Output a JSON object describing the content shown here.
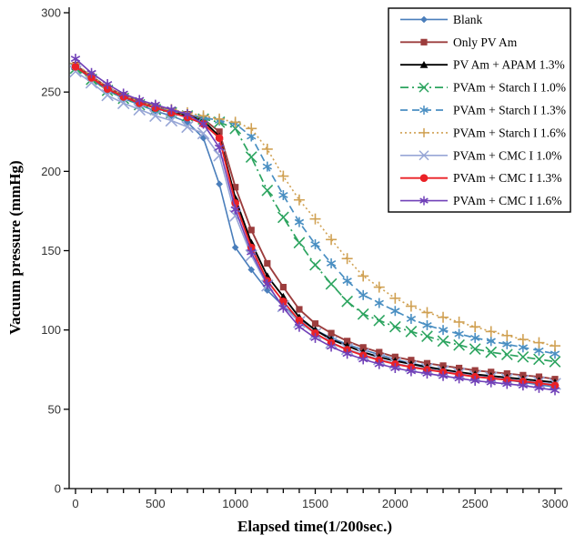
{
  "chart_data": {
    "type": "line",
    "title": "",
    "xlabel": "Elapsed time(1/200sec.)",
    "ylabel": "Vacuum pressure (mmHg)",
    "xlim": [
      0,
      3000
    ],
    "ylim": [
      0,
      300
    ],
    "x_major_ticks": [
      0,
      500,
      1000,
      1500,
      2000,
      2500,
      3000
    ],
    "x_minor_step": 100,
    "y_ticks": [
      0,
      50,
      100,
      150,
      200,
      250,
      300
    ],
    "grid": false,
    "legend_position": "top-right",
    "axis_color": "#000000",
    "tick_label_color": "#333333",
    "x_step": 100,
    "series": [
      {
        "name": "Blank",
        "color": "#4a7ebb",
        "marker": "diamond",
        "marker_size": 3.8,
        "dash": "",
        "width": 1.6,
        "values": [
          266,
          258,
          251,
          246,
          242,
          238,
          235,
          231,
          221,
          192,
          152,
          138,
          125,
          115,
          107,
          100,
          95,
          91,
          87.5,
          84.5,
          81.5,
          79,
          77,
          75,
          73,
          71.5,
          70,
          68.5,
          67,
          65.5,
          64
        ]
      },
      {
        "name": "Only PV Am",
        "color": "#9c3d3d",
        "marker": "square",
        "marker_size": 3.6,
        "dash": "",
        "width": 1.9,
        "values": [
          267,
          260,
          253,
          248,
          244,
          241,
          238,
          236,
          233,
          225,
          190,
          163,
          142,
          127,
          113,
          104,
          98,
          93,
          89,
          86,
          83,
          81,
          79,
          77.5,
          76,
          74.5,
          73.5,
          72.5,
          71.5,
          70.5,
          69
        ]
      },
      {
        "name": "PV Am + APAM 1.3%",
        "color": "#000000",
        "marker": "triangle",
        "marker_size": 4.2,
        "dash": "",
        "width": 1.9,
        "values": [
          266,
          259,
          252,
          247,
          243,
          240,
          237,
          235,
          232,
          222,
          183,
          155,
          134,
          121,
          108,
          100,
          94,
          90,
          86,
          83,
          80.5,
          78.5,
          76.5,
          75,
          73.5,
          72,
          71,
          70,
          69,
          68,
          67
        ]
      },
      {
        "name": "PVAm + Starch I 1.0%",
        "color": "#2ca45f",
        "marker": "x",
        "marker_size": 5.8,
        "dash": "9 4 2 4",
        "width": 1.7,
        "values": [
          265,
          258,
          251,
          246,
          242,
          239,
          237,
          235,
          233,
          231,
          227,
          209,
          188,
          171,
          155,
          141,
          129,
          118,
          110,
          106,
          102,
          99,
          96,
          93,
          90.5,
          88,
          86,
          84.5,
          83,
          81.5,
          80
        ]
      },
      {
        "name": "PVAm + Starch I 1.3%",
        "color": "#4a8fc2",
        "marker": "asterisk",
        "marker_size": 5.5,
        "dash": "8 5",
        "width": 1.7,
        "values": [
          266,
          259,
          252,
          247,
          243,
          240,
          238,
          236,
          234,
          232,
          230,
          222,
          203,
          185,
          168,
          154,
          142,
          131,
          122,
          117,
          112,
          107,
          103,
          100,
          97.5,
          95,
          93,
          91,
          89,
          87,
          85
        ]
      },
      {
        "name": "PVAm + Starch I 1.6%",
        "color": "#d0a153",
        "marker": "plus",
        "marker_size": 6,
        "dash": "2 3",
        "width": 1.6,
        "values": [
          268,
          260,
          253,
          248,
          244,
          241,
          239,
          237,
          235,
          233,
          231,
          227,
          214,
          197,
          182,
          170,
          157,
          145,
          134,
          127,
          120,
          115,
          111,
          108,
          105,
          102,
          99,
          96.5,
          94,
          92,
          90
        ]
      },
      {
        "name": "PVAm + CMC I 1.0%",
        "color": "#97a6d6",
        "marker": "x",
        "marker_size": 6.2,
        "dash": "",
        "width": 1.6,
        "values": [
          263,
          256,
          248,
          243,
          239,
          235,
          232,
          228,
          224,
          210,
          172,
          147,
          128,
          115,
          105,
          97.5,
          92,
          88,
          84.5,
          81.5,
          79,
          77,
          75.5,
          74,
          72.5,
          71,
          70,
          69,
          68,
          67,
          66
        ]
      },
      {
        "name": "PVAm + CMC I 1.3%",
        "color": "#ea2126",
        "marker": "circle",
        "marker_size": 4.3,
        "dash": "",
        "width": 1.9,
        "values": [
          266,
          259,
          252,
          247,
          243,
          240,
          237,
          234,
          230,
          221,
          180,
          152,
          131,
          118,
          106,
          98,
          92,
          87.5,
          84,
          81,
          78.5,
          76.5,
          75,
          73.5,
          72,
          70.5,
          69.5,
          68.5,
          67.5,
          66.5,
          65
        ]
      },
      {
        "name": "PVAm + CMC I 1.6%",
        "color": "#7040b8",
        "marker": "asterisk",
        "marker_size": 5.5,
        "dash": "",
        "width": 1.6,
        "values": [
          271,
          262,
          255,
          249,
          245,
          242,
          239,
          236,
          230,
          215,
          176,
          149,
          129,
          114,
          102,
          95,
          89.5,
          85,
          81.5,
          78.5,
          76,
          74,
          72.5,
          71,
          69.5,
          68,
          67,
          66,
          65,
          63.5,
          62
        ]
      }
    ]
  }
}
